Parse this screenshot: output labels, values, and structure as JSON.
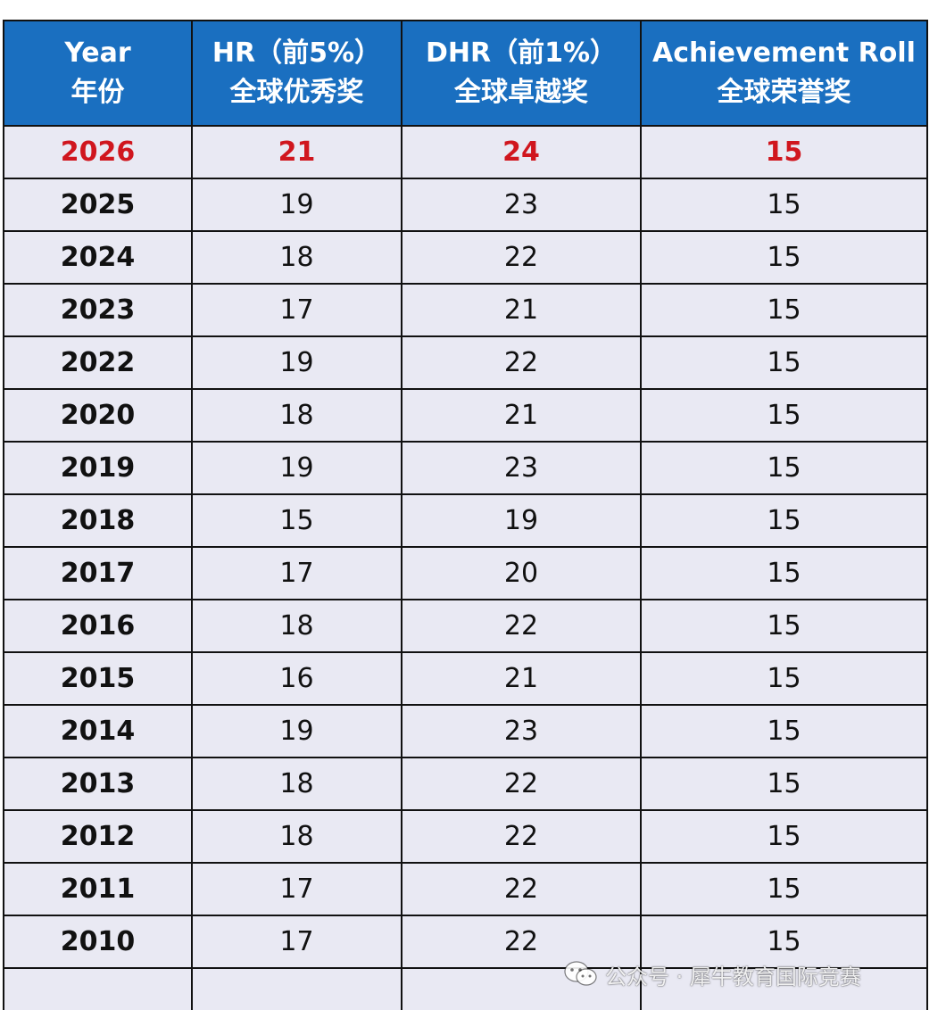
{
  "table": {
    "headers": [
      {
        "line1": "Year",
        "line2": "年份"
      },
      {
        "line1": "HR（前5%）",
        "line2": "全球优秀奖"
      },
      {
        "line1": "DHR（前1%）",
        "line2": "全球卓越奖"
      },
      {
        "line1": "Achievement Roll",
        "line2": "全球荣誉奖"
      }
    ],
    "rows": [
      [
        "2026",
        "21",
        "24",
        "15"
      ],
      [
        "2025",
        "19",
        "23",
        "15"
      ],
      [
        "2024",
        "18",
        "22",
        "15"
      ],
      [
        "2023",
        "17",
        "21",
        "15"
      ],
      [
        "2022",
        "19",
        "22",
        "15"
      ],
      [
        "2020",
        "18",
        "21",
        "15"
      ],
      [
        "2019",
        "19",
        "23",
        "15"
      ],
      [
        "2018",
        "15",
        "19",
        "15"
      ],
      [
        "2017",
        "17",
        "20",
        "15"
      ],
      [
        "2016",
        "18",
        "22",
        "15"
      ],
      [
        "2015",
        "16",
        "21",
        "15"
      ],
      [
        "2014",
        "19",
        "23",
        "15"
      ],
      [
        "2013",
        "18",
        "22",
        "15"
      ],
      [
        "2012",
        "18",
        "22",
        "15"
      ],
      [
        "2011",
        "17",
        "22",
        "15"
      ],
      [
        "2010",
        "17",
        "22",
        "15"
      ]
    ],
    "header_color": "#1a6fc0",
    "cell_color": "#e9e9f3",
    "highlight_color": "#d0161e"
  },
  "watermark": {
    "icon": "wechat-icon",
    "text": "公众号 · 犀牛教育国际竞赛"
  }
}
